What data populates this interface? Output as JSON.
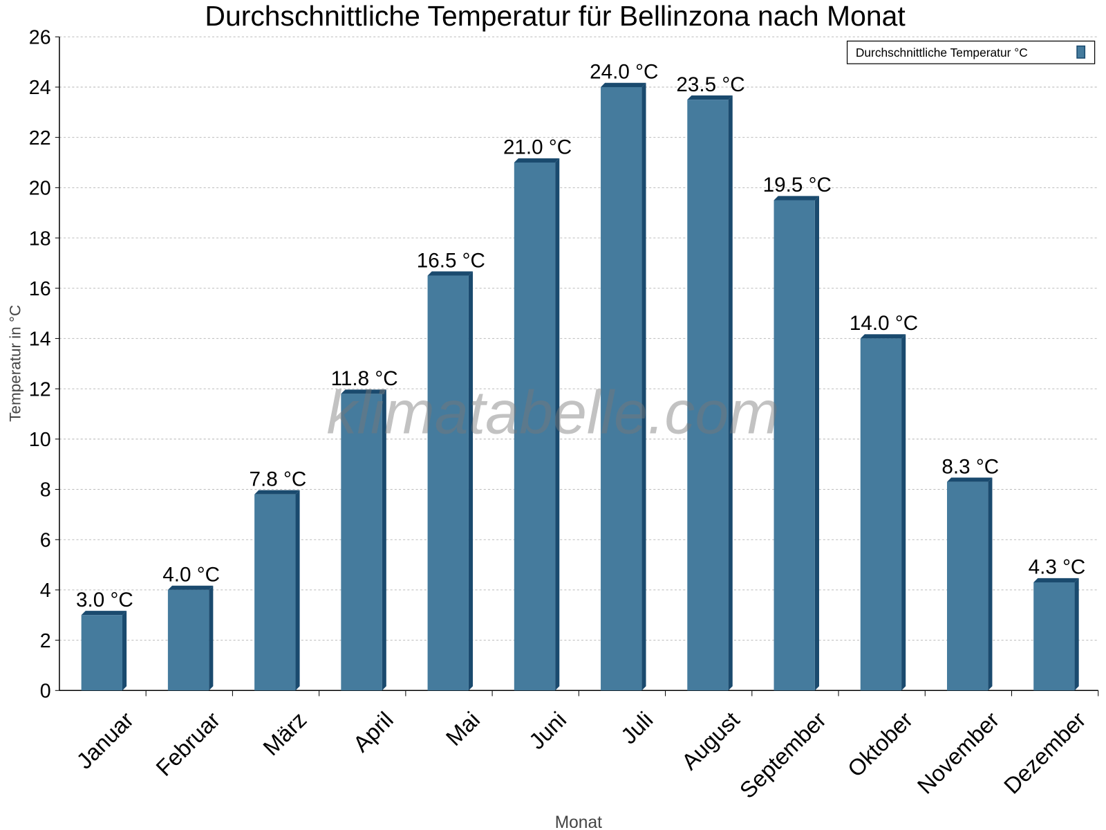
{
  "chart_data": {
    "type": "bar",
    "title": "Durchschnittliche Temperatur für Bellinzona nach Monat",
    "xlabel": "Monat",
    "ylabel": "Temperatur in °C",
    "categories": [
      "Januar",
      "Februar",
      "März",
      "April",
      "Mai",
      "Juni",
      "Juli",
      "August",
      "September",
      "Oktober",
      "November",
      "Dezember"
    ],
    "series": [
      {
        "name": "Durchschnittliche Temperatur °C",
        "values": [
          3.0,
          4.0,
          7.8,
          11.8,
          16.5,
          21.0,
          24.0,
          23.5,
          19.5,
          14.0,
          8.3,
          4.3
        ]
      }
    ],
    "data_labels": [
      "3.0 °C",
      "4.0 °C",
      "7.8 °C",
      "11.8 °C",
      "16.5 °C",
      "21.0 °C",
      "24.0 °C",
      "23.5 °C",
      "19.5 °C",
      "14.0 °C",
      "8.3 °C",
      "4.3 °C"
    ],
    "ylim": [
      0,
      26
    ],
    "yticks": [
      "0",
      "2",
      "4",
      "6",
      "8",
      "10",
      "12",
      "14",
      "16",
      "18",
      "20",
      "22",
      "24",
      "26"
    ],
    "grid": true,
    "legend_position": "top-right",
    "colors": {
      "bar": "#457b9d",
      "bar_side": "#1a4a6e"
    }
  },
  "watermark": "klimatabelle.com"
}
